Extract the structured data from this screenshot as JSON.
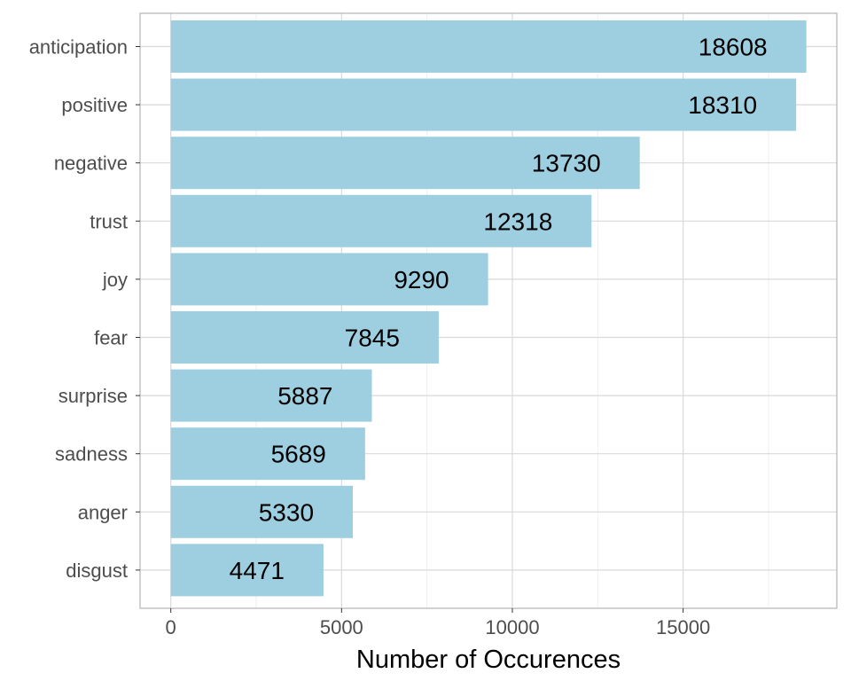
{
  "chart_data": {
    "type": "bar",
    "orientation": "horizontal",
    "categories": [
      "anticipation",
      "positive",
      "negative",
      "trust",
      "joy",
      "fear",
      "surprise",
      "sadness",
      "anger",
      "disgust"
    ],
    "values": [
      18608,
      18310,
      13730,
      12318,
      9290,
      7845,
      5887,
      5689,
      5330,
      4471
    ],
    "data_labels": [
      "18608",
      "18310",
      "13730",
      "12318",
      "9290",
      "7845",
      "5887",
      "5689",
      "5330",
      "4471"
    ],
    "title": "",
    "xlabel": "Number of Occurences",
    "ylabel": "",
    "xlim": [
      -900,
      19500
    ],
    "x_ticks": [
      0,
      5000,
      10000,
      15000
    ],
    "x_tick_labels": [
      "0",
      "5000",
      "10000",
      "15000"
    ],
    "x_minor_ticks": [
      2500,
      7500,
      12500,
      17500
    ],
    "grid": true,
    "legend": "none",
    "colors": {
      "bar": "#9ecfe1",
      "grid_major": "#d9d9d9",
      "grid_minor": "#eeeeee",
      "panel_border": "#b3b3b3",
      "tick_label": "#4d4d4d",
      "data_label": "#000000",
      "axis_title": "#000000"
    }
  }
}
